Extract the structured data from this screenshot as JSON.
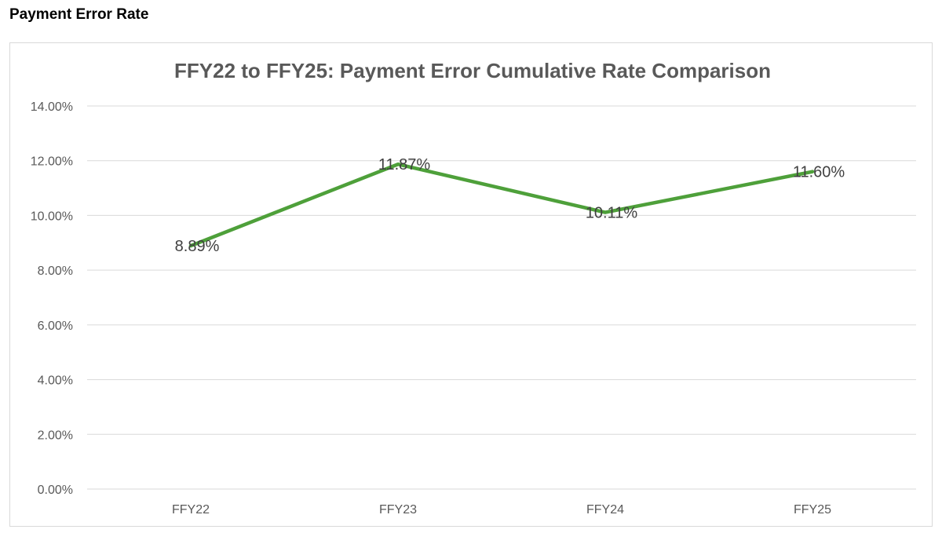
{
  "page": {
    "section_title": "Payment Error Rate"
  },
  "chart_data": {
    "type": "line",
    "title": "FFY22 to FFY25: Payment Error Cumulative Rate Comparison",
    "xlabel": "",
    "ylabel": "",
    "categories": [
      "FFY22",
      "FFY23",
      "FFY24",
      "FFY25"
    ],
    "series": [
      {
        "values": [
          8.89,
          11.87,
          10.11,
          11.6
        ],
        "data_labels": [
          "8.89%",
          "11.87%",
          "10.11%",
          "11.60%"
        ],
        "color": "#4ea03a"
      }
    ],
    "ylim": [
      0,
      14
    ],
    "y_ticks": [
      0,
      2,
      4,
      6,
      8,
      10,
      12,
      14
    ],
    "y_tick_labels": [
      "0.00%",
      "2.00%",
      "4.00%",
      "6.00%",
      "8.00%",
      "10.00%",
      "12.00%",
      "14.00%"
    ],
    "grid": true,
    "legend": "none"
  }
}
